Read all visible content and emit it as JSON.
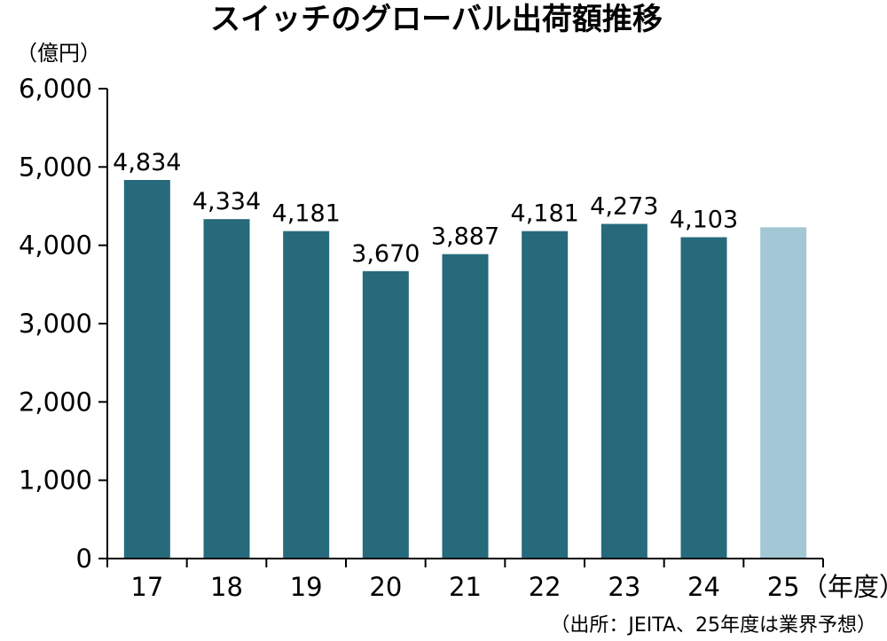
{
  "chart_data": {
    "type": "bar",
    "title": "スイッチのグローバル出荷額推移",
    "ylabel": "（億円）",
    "xlabel": "（年度）",
    "source": "（出所：JEITA、25年度は業界予想）",
    "categories": [
      "17",
      "18",
      "19",
      "20",
      "21",
      "22",
      "23",
      "24",
      "25"
    ],
    "values": [
      4834,
      4334,
      4181,
      3670,
      3887,
      4181,
      4273,
      4103,
      4230
    ],
    "data_labels": [
      "4,834",
      "4,334",
      "4,181",
      "3,670",
      "3,887",
      "4,181",
      "4,273",
      "4,103",
      ""
    ],
    "forecast": [
      false,
      false,
      false,
      false,
      false,
      false,
      false,
      false,
      true
    ],
    "ylim": [
      0,
      6000
    ],
    "yticks": [
      0,
      1000,
      2000,
      3000,
      4000,
      5000,
      6000
    ],
    "ytick_labels": [
      "0",
      "1,000",
      "2,000",
      "3,000",
      "4,000",
      "5,000",
      "6,000"
    ],
    "grid": false,
    "legend": "none",
    "colors": {
      "actual": "#266a7b",
      "forecast": "#a3c7d4",
      "axis": "#000000"
    }
  }
}
